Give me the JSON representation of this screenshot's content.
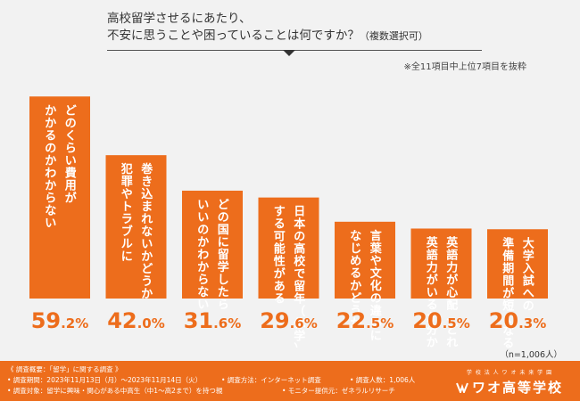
{
  "title_line1": "高校留学させるにあたり、",
  "title_line2": "不安に思うことや困っていることは何ですか？",
  "title_suffix": "（複数選択可）",
  "subnote": "※全11項目中上位7項目を抜粋",
  "n_note": "（n=1,006人）",
  "colors": {
    "bar": "#ed6d1c",
    "background": "#f2f2f2",
    "text_on_bar": "#ffffff",
    "value_text": "#ed6d1c"
  },
  "chart_data": {
    "type": "bar",
    "title": "高校留学させるにあたり、不安に思うことや困っていることは何ですか？（複数選択可）",
    "categories": [
      "どのくらい費用がかかるのかわからない",
      "犯罪やトラブルに巻き込まれないかどうか",
      "どの国に留学したらいいのかわからない",
      "日本の高校で留年（休学）する可能性がある",
      "言葉や文化の違いになじめるかどうか",
      "英語力が心配、どれぐらいの英語力がいるか分からない",
      "大学入試への準備期間が短くなる"
    ],
    "value_labels": [
      "59.2%",
      "42.0%",
      "31.6%",
      "29.6%",
      "22.5%",
      "20.5%",
      "20.3%"
    ],
    "values": [
      59.2,
      42.0,
      31.6,
      29.6,
      22.5,
      20.5,
      20.3
    ],
    "label_columns": [
      [
        "かかるのかわからない",
        "どのくらい費用が"
      ],
      [
        "犯罪やトラブルに",
        "巻き込まれないかどうか"
      ],
      [
        "いいのかわからない",
        "どの国に留学したら"
      ],
      [
        "する可能性がある",
        "日本の高校で留年（休学）"
      ],
      [
        "なじめるかどうか",
        "言葉や文化の違いに"
      ],
      [
        "英語力がいるか分からない",
        "英語力が心配、どれぐらいの"
      ],
      [
        "準備期間が短くなる",
        "大学入試への"
      ]
    ],
    "ylim": [
      0,
      70
    ],
    "grid": false,
    "legend": "none"
  },
  "footer": {
    "survey_overview": "《 調査概要：「留学」に関する調査 》",
    "period": "• 調査期間：2023年11月13日（月）～2023年11月14日（火）",
    "method": "• 調査方法：インターネット調査",
    "respondents": "• 調査人数：1,006人",
    "target": "• 調査対象：留学に興味・関心がある中高生（中1～高2まで）を持つ親",
    "provider": "• モニター提供元：ゼネラルリサーチ"
  },
  "logo": {
    "subtitle": "学 校 法 人 ワ オ 未 来 学 園",
    "name": "ワオ高等学校"
  }
}
